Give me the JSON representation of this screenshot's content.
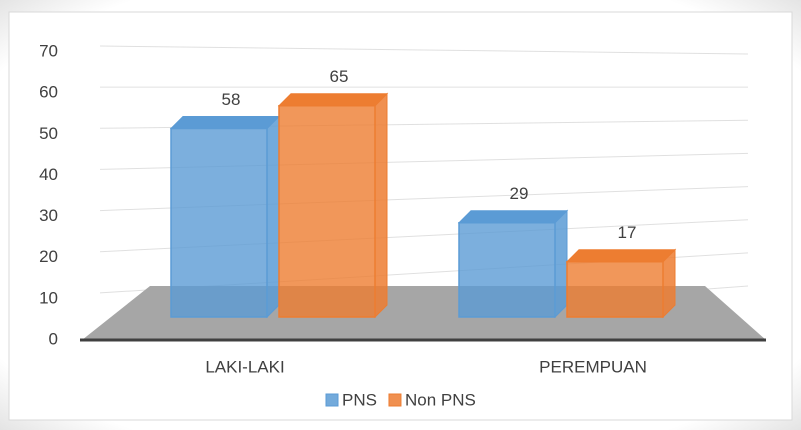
{
  "chart_data": {
    "type": "bar3d",
    "categories": [
      "LAKI-LAKI",
      "PEREMPUAN"
    ],
    "series": [
      {
        "name": "PNS",
        "color": "#5b9bd5",
        "values": [
          58,
          29
        ]
      },
      {
        "name": "Non PNS",
        "color": "#ed7d31",
        "values": [
          65,
          17
        ]
      }
    ],
    "ylim": [
      0,
      70
    ],
    "yticks": [
      0,
      10,
      20,
      30,
      40,
      50,
      60,
      70
    ],
    "grid": true,
    "legend": "bottom"
  }
}
